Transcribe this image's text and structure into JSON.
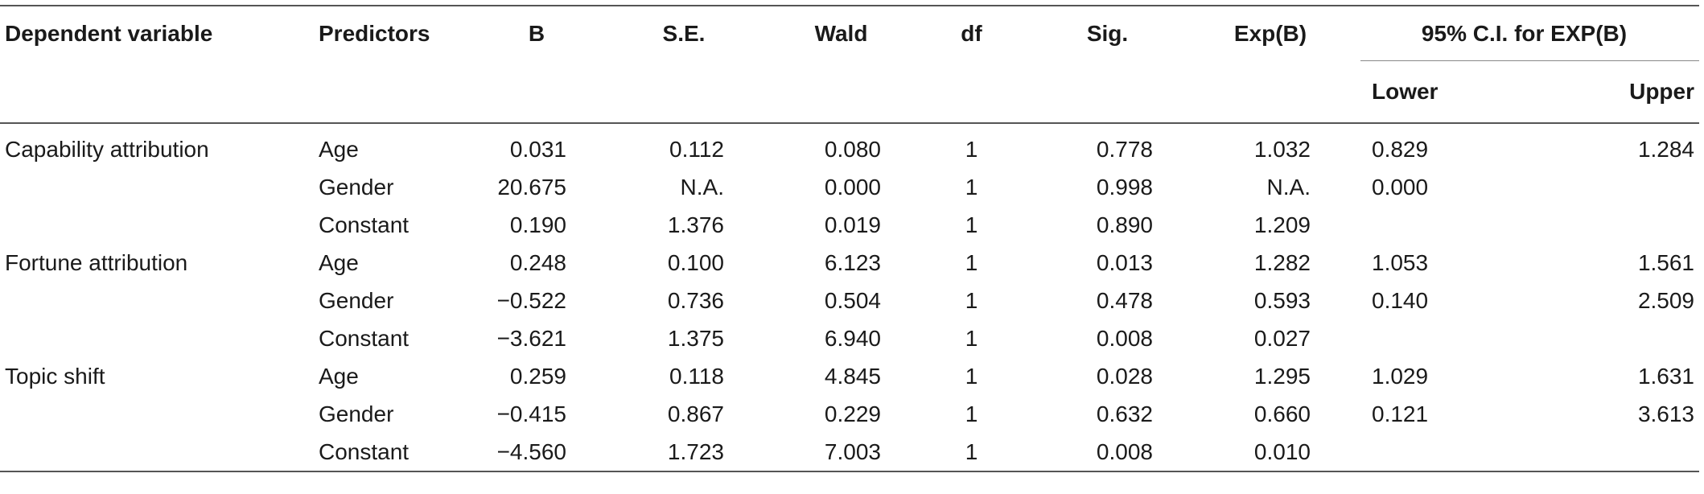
{
  "table": {
    "headers": {
      "dependent": "Dependent variable",
      "predictors": "Predictors",
      "b": "B",
      "se": "S.E.",
      "wald": "Wald",
      "df": "df",
      "sig": "Sig.",
      "expb": "Exp(B)",
      "ci_group": "95% C.I. for EXP(B)",
      "lower": "Lower",
      "upper": "Upper"
    },
    "rows": [
      {
        "dep": "Capability attribution",
        "pred": "Age",
        "b": "0.031",
        "se": "0.112",
        "wald": "0.080",
        "df": "1",
        "sig": "0.778",
        "exp": "1.032",
        "lower": "0.829",
        "upper": "1.284"
      },
      {
        "dep": "",
        "pred": "Gender",
        "b": "20.675",
        "se": "N.A.",
        "wald": "0.000",
        "df": "1",
        "sig": "0.998",
        "exp": "N.A.",
        "lower": "0.000",
        "upper": ""
      },
      {
        "dep": "",
        "pred": "Constant",
        "b": "0.190",
        "se": "1.376",
        "wald": "0.019",
        "df": "1",
        "sig": "0.890",
        "exp": "1.209",
        "lower": "",
        "upper": ""
      },
      {
        "dep": "Fortune attribution",
        "pred": "Age",
        "b": "0.248",
        "se": "0.100",
        "wald": "6.123",
        "df": "1",
        "sig": "0.013",
        "exp": "1.282",
        "lower": "1.053",
        "upper": "1.561"
      },
      {
        "dep": "",
        "pred": "Gender",
        "b": "−0.522",
        "se": "0.736",
        "wald": "0.504",
        "df": "1",
        "sig": "0.478",
        "exp": "0.593",
        "lower": "0.140",
        "upper": "2.509"
      },
      {
        "dep": "",
        "pred": "Constant",
        "b": "−3.621",
        "se": "1.375",
        "wald": "6.940",
        "df": "1",
        "sig": "0.008",
        "exp": "0.027",
        "lower": "",
        "upper": ""
      },
      {
        "dep": "Topic shift",
        "pred": "Age",
        "b": "0.259",
        "se": "0.118",
        "wald": "4.845",
        "df": "1",
        "sig": "0.028",
        "exp": "1.295",
        "lower": "1.029",
        "upper": "1.631"
      },
      {
        "dep": "",
        "pred": "Gender",
        "b": "−0.415",
        "se": "0.867",
        "wald": "0.229",
        "df": "1",
        "sig": "0.632",
        "exp": "0.660",
        "lower": "0.121",
        "upper": "3.613"
      },
      {
        "dep": "",
        "pred": "Constant",
        "b": "−4.560",
        "se": "1.723",
        "wald": "7.003",
        "df": "1",
        "sig": "0.008",
        "exp": "0.010",
        "lower": "",
        "upper": ""
      }
    ]
  }
}
